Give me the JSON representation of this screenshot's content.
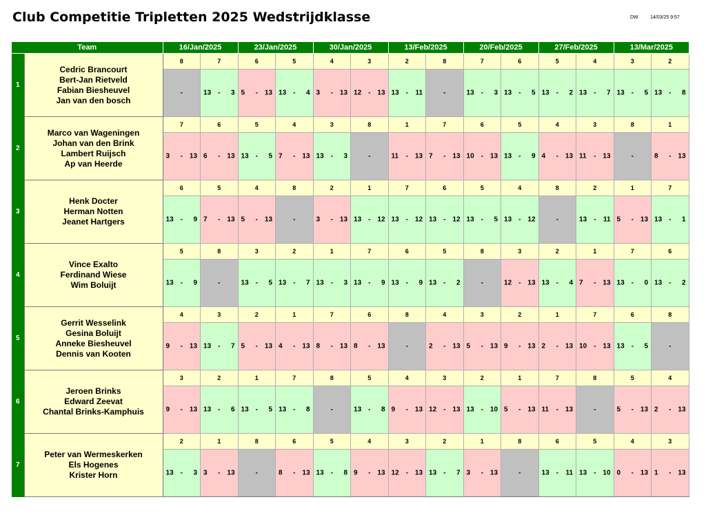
{
  "title": "Club Competitie Tripletten 2025 Wedstrijdklasse",
  "author": "DW",
  "printed": "14/03/25 9:57",
  "team_header": "Team",
  "dates": [
    "16/Jan/2025",
    "23/Jan/2025",
    "30/Jan/2025",
    "13/Feb/2025",
    "20/Feb/2025",
    "27/Feb/2025",
    "13/Mar/2025"
  ],
  "dash": "-",
  "teams": [
    {
      "number": "1",
      "players": [
        "Cedric Brancourt",
        "Bert-Jan Rietveld",
        "Fabian Biesheuvel",
        "Jan van den bosch"
      ],
      "games": [
        {
          "opp": "8",
          "a": "",
          "b": "",
          "r": "bye"
        },
        {
          "opp": "7",
          "a": "13",
          "b": "3",
          "r": "win"
        },
        {
          "opp": "6",
          "a": "5",
          "b": "13",
          "r": "loss"
        },
        {
          "opp": "5",
          "a": "13",
          "b": "4",
          "r": "win"
        },
        {
          "opp": "4",
          "a": "3",
          "b": "13",
          "r": "loss"
        },
        {
          "opp": "3",
          "a": "12",
          "b": "13",
          "r": "loss"
        },
        {
          "opp": "2",
          "a": "13",
          "b": "11",
          "r": "win"
        },
        {
          "opp": "8",
          "a": "",
          "b": "",
          "r": "bye"
        },
        {
          "opp": "7",
          "a": "13",
          "b": "3",
          "r": "win"
        },
        {
          "opp": "6",
          "a": "13",
          "b": "5",
          "r": "win"
        },
        {
          "opp": "5",
          "a": "13",
          "b": "2",
          "r": "win"
        },
        {
          "opp": "4",
          "a": "13",
          "b": "7",
          "r": "win"
        },
        {
          "opp": "3",
          "a": "13",
          "b": "5",
          "r": "win"
        },
        {
          "opp": "2",
          "a": "13",
          "b": "8",
          "r": "win"
        }
      ]
    },
    {
      "number": "2",
      "players": [
        "Marco van Wageningen",
        "Johan van den Brink",
        "Lambert Ruijsch",
        "Ap van Heerde"
      ],
      "games": [
        {
          "opp": "7",
          "a": "3",
          "b": "13",
          "r": "loss"
        },
        {
          "opp": "6",
          "a": "6",
          "b": "13",
          "r": "loss"
        },
        {
          "opp": "5",
          "a": "13",
          "b": "5",
          "r": "win"
        },
        {
          "opp": "4",
          "a": "7",
          "b": "13",
          "r": "loss"
        },
        {
          "opp": "3",
          "a": "13",
          "b": "3",
          "r": "win"
        },
        {
          "opp": "8",
          "a": "",
          "b": "",
          "r": "bye"
        },
        {
          "opp": "1",
          "a": "11",
          "b": "13",
          "r": "loss"
        },
        {
          "opp": "7",
          "a": "7",
          "b": "13",
          "r": "loss"
        },
        {
          "opp": "6",
          "a": "10",
          "b": "13",
          "r": "loss"
        },
        {
          "opp": "5",
          "a": "13",
          "b": "9",
          "r": "win"
        },
        {
          "opp": "4",
          "a": "4",
          "b": "13",
          "r": "loss"
        },
        {
          "opp": "3",
          "a": "11",
          "b": "13",
          "r": "loss"
        },
        {
          "opp": "8",
          "a": "",
          "b": "",
          "r": "bye"
        },
        {
          "opp": "1",
          "a": "8",
          "b": "13",
          "r": "loss"
        }
      ]
    },
    {
      "number": "3",
      "players": [
        "Henk Docter",
        "Herman Notten",
        "Jeanet Hartgers"
      ],
      "games": [
        {
          "opp": "6",
          "a": "13",
          "b": "9",
          "r": "win"
        },
        {
          "opp": "5",
          "a": "7",
          "b": "13",
          "r": "loss"
        },
        {
          "opp": "4",
          "a": "5",
          "b": "13",
          "r": "loss"
        },
        {
          "opp": "8",
          "a": "",
          "b": "",
          "r": "bye"
        },
        {
          "opp": "2",
          "a": "3",
          "b": "13",
          "r": "loss"
        },
        {
          "opp": "1",
          "a": "13",
          "b": "12",
          "r": "win"
        },
        {
          "opp": "7",
          "a": "13",
          "b": "12",
          "r": "win"
        },
        {
          "opp": "6",
          "a": "13",
          "b": "12",
          "r": "win"
        },
        {
          "opp": "5",
          "a": "13",
          "b": "5",
          "r": "win"
        },
        {
          "opp": "4",
          "a": "13",
          "b": "12",
          "r": "win"
        },
        {
          "opp": "8",
          "a": "",
          "b": "",
          "r": "bye"
        },
        {
          "opp": "2",
          "a": "13",
          "b": "11",
          "r": "win"
        },
        {
          "opp": "1",
          "a": "5",
          "b": "13",
          "r": "loss"
        },
        {
          "opp": "7",
          "a": "13",
          "b": "1",
          "r": "win"
        }
      ]
    },
    {
      "number": "4",
      "players": [
        "Vince Exalto",
        "Ferdinand Wiese",
        "Wim Boluijt"
      ],
      "games": [
        {
          "opp": "5",
          "a": "13",
          "b": "9",
          "r": "win"
        },
        {
          "opp": "8",
          "a": "",
          "b": "",
          "r": "bye"
        },
        {
          "opp": "3",
          "a": "13",
          "b": "5",
          "r": "win"
        },
        {
          "opp": "2",
          "a": "13",
          "b": "7",
          "r": "win"
        },
        {
          "opp": "1",
          "a": "13",
          "b": "3",
          "r": "win"
        },
        {
          "opp": "7",
          "a": "13",
          "b": "9",
          "r": "win"
        },
        {
          "opp": "6",
          "a": "13",
          "b": "9",
          "r": "win"
        },
        {
          "opp": "5",
          "a": "13",
          "b": "2",
          "r": "win"
        },
        {
          "opp": "8",
          "a": "",
          "b": "",
          "r": "bye"
        },
        {
          "opp": "3",
          "a": "12",
          "b": "13",
          "r": "loss"
        },
        {
          "opp": "2",
          "a": "13",
          "b": "4",
          "r": "win"
        },
        {
          "opp": "1",
          "a": "7",
          "b": "13",
          "r": "loss"
        },
        {
          "opp": "7",
          "a": "13",
          "b": "0",
          "r": "win"
        },
        {
          "opp": "6",
          "a": "13",
          "b": "2",
          "r": "win"
        }
      ]
    },
    {
      "number": "5",
      "players": [
        "Gerrit Wesselink",
        "Gesina Boluijt",
        "Anneke Biesheuvel",
        "Dennis van Kooten"
      ],
      "games": [
        {
          "opp": "4",
          "a": "9",
          "b": "13",
          "r": "loss"
        },
        {
          "opp": "3",
          "a": "13",
          "b": "7",
          "r": "win"
        },
        {
          "opp": "2",
          "a": "5",
          "b": "13",
          "r": "loss"
        },
        {
          "opp": "1",
          "a": "4",
          "b": "13",
          "r": "loss"
        },
        {
          "opp": "7",
          "a": "8",
          "b": "13",
          "r": "loss"
        },
        {
          "opp": "6",
          "a": "8",
          "b": "13",
          "r": "loss"
        },
        {
          "opp": "8",
          "a": "",
          "b": "",
          "r": "bye"
        },
        {
          "opp": "4",
          "a": "2",
          "b": "13",
          "r": "loss"
        },
        {
          "opp": "3",
          "a": "5",
          "b": "13",
          "r": "loss"
        },
        {
          "opp": "2",
          "a": "9",
          "b": "13",
          "r": "loss"
        },
        {
          "opp": "1",
          "a": "2",
          "b": "13",
          "r": "loss"
        },
        {
          "opp": "7",
          "a": "10",
          "b": "13",
          "r": "loss"
        },
        {
          "opp": "6",
          "a": "13",
          "b": "5",
          "r": "win"
        },
        {
          "opp": "8",
          "a": "",
          "b": "",
          "r": "bye"
        }
      ]
    },
    {
      "number": "6",
      "players": [
        "Jeroen Brinks",
        "Edward Zeevat",
        "Chantal Brinks-Kamphuis"
      ],
      "games": [
        {
          "opp": "3",
          "a": "9",
          "b": "13",
          "r": "loss"
        },
        {
          "opp": "2",
          "a": "13",
          "b": "6",
          "r": "win"
        },
        {
          "opp": "1",
          "a": "13",
          "b": "5",
          "r": "win"
        },
        {
          "opp": "7",
          "a": "13",
          "b": "8",
          "r": "win"
        },
        {
          "opp": "8",
          "a": "",
          "b": "",
          "r": "bye"
        },
        {
          "opp": "5",
          "a": "13",
          "b": "8",
          "r": "win"
        },
        {
          "opp": "4",
          "a": "9",
          "b": "13",
          "r": "loss"
        },
        {
          "opp": "3",
          "a": "12",
          "b": "13",
          "r": "loss"
        },
        {
          "opp": "2",
          "a": "13",
          "b": "10",
          "r": "win"
        },
        {
          "opp": "1",
          "a": "5",
          "b": "13",
          "r": "loss"
        },
        {
          "opp": "7",
          "a": "11",
          "b": "13",
          "r": "loss"
        },
        {
          "opp": "8",
          "a": "",
          "b": "",
          "r": "bye"
        },
        {
          "opp": "5",
          "a": "5",
          "b": "13",
          "r": "loss"
        },
        {
          "opp": "4",
          "a": "2",
          "b": "13",
          "r": "loss"
        }
      ]
    },
    {
      "number": "7",
      "players": [
        "Peter van Wermeskerken",
        "Els Hogenes",
        "Krister Horn"
      ],
      "games": [
        {
          "opp": "2",
          "a": "13",
          "b": "3",
          "r": "win"
        },
        {
          "opp": "1",
          "a": "3",
          "b": "13",
          "r": "loss"
        },
        {
          "opp": "8",
          "a": "",
          "b": "",
          "r": "bye"
        },
        {
          "opp": "6",
          "a": "8",
          "b": "13",
          "r": "loss"
        },
        {
          "opp": "5",
          "a": "13",
          "b": "8",
          "r": "win"
        },
        {
          "opp": "4",
          "a": "9",
          "b": "13",
          "r": "loss"
        },
        {
          "opp": "3",
          "a": "12",
          "b": "13",
          "r": "loss"
        },
        {
          "opp": "2",
          "a": "13",
          "b": "7",
          "r": "win"
        },
        {
          "opp": "1",
          "a": "3",
          "b": "13",
          "r": "loss"
        },
        {
          "opp": "8",
          "a": "",
          "b": "",
          "r": "bye"
        },
        {
          "opp": "6",
          "a": "13",
          "b": "11",
          "r": "win"
        },
        {
          "opp": "5",
          "a": "13",
          "b": "10",
          "r": "win"
        },
        {
          "opp": "4",
          "a": "0",
          "b": "13",
          "r": "loss"
        },
        {
          "opp": "3",
          "a": "1",
          "b": "13",
          "r": "loss"
        }
      ]
    }
  ],
  "colors": {
    "header_green": "#008000",
    "name_yellow": "#ffffcc",
    "win_green": "#ccffcc",
    "loss_red": "#ffcccc",
    "bye_grey": "#c0c0c0"
  }
}
